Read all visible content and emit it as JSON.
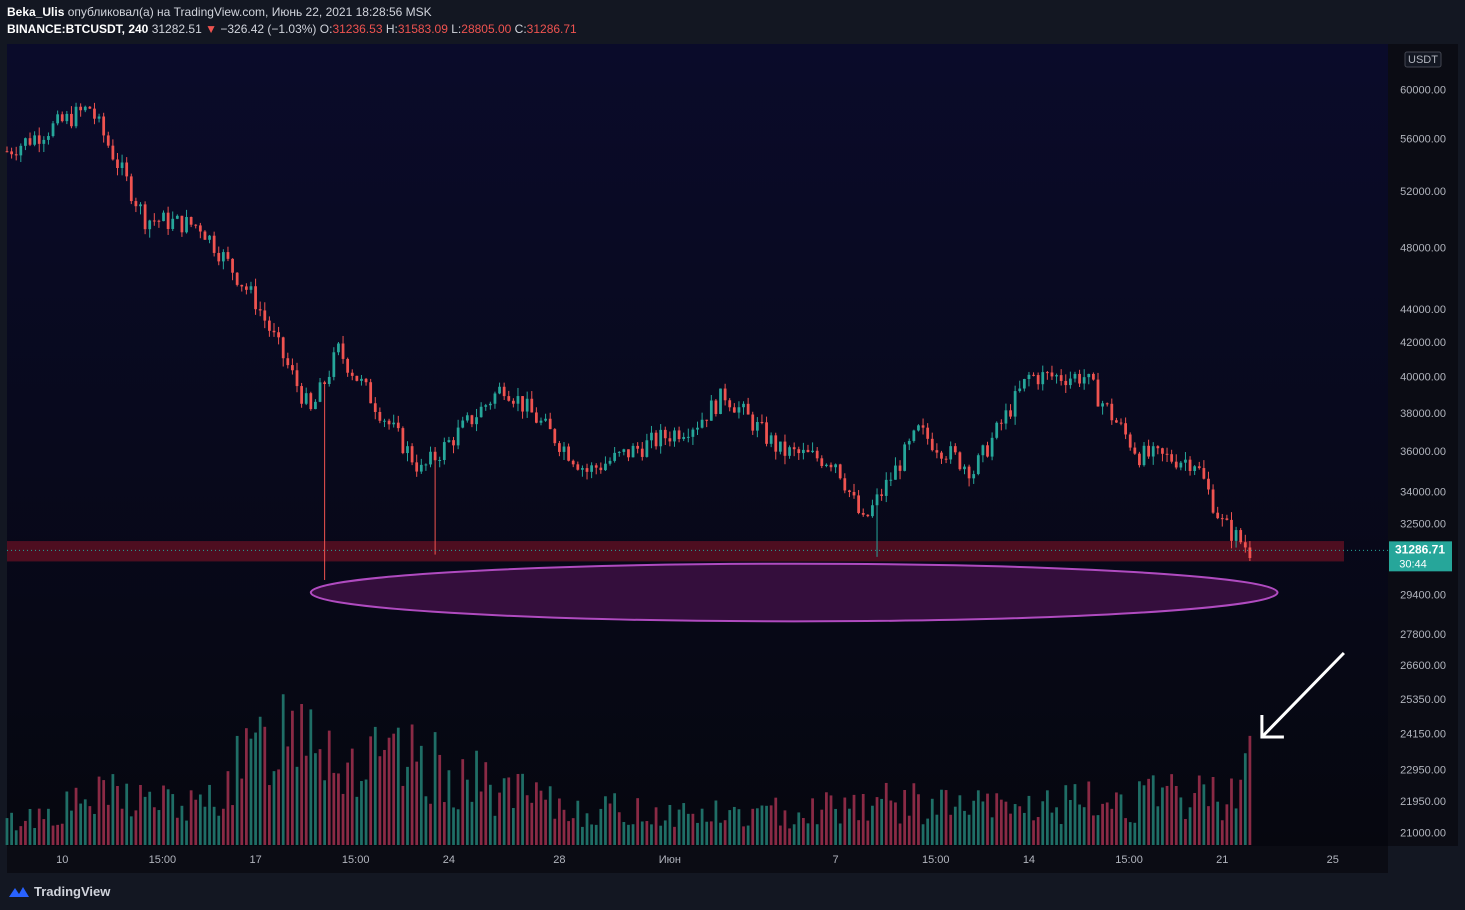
{
  "header": {
    "author": "Beka_Ulis",
    "published_text": "опубликовал(а) на TradingView.com, Июнь 22, 2021 18:28:56 MSK",
    "symbol": "BINANCE:BTCUSDT, 240",
    "last": "31282.51",
    "change_arrow": "▼",
    "change": "−326.42 (−1.03%)",
    "o_label": "O:",
    "o_value": "31236.53",
    "h_label": "H:",
    "h_value": "31583.09",
    "l_label": "L:",
    "l_value": "28805.00",
    "c_label": "C:",
    "c_value": "31286.71"
  },
  "footer": {
    "brand": "TradingView",
    "logo_icon": "tradingview-logo-icon"
  },
  "colors": {
    "up": "#26a69a",
    "down": "#ef5350",
    "vol_up": "#1f6e66",
    "vol_down": "#8a2a45",
    "zone": "#5a0f22",
    "ellipse_fill": "#3a1040",
    "ellipse_stroke": "#b04bc0",
    "price_badge": "#26a69a"
  },
  "chart_data": {
    "type": "candlestick",
    "symbol": "BINANCE:BTCUSDT",
    "interval": "240",
    "currency": "USDT",
    "y_scale": "log",
    "ylim": [
      20600,
      64000
    ],
    "y_ticks": [
      "60000.00",
      "56000.00",
      "52000.00",
      "48000.00",
      "44000.00",
      "42000.00",
      "40000.00",
      "38000.00",
      "36000.00",
      "34000.00",
      "32500.00",
      "29400.00",
      "27800.00",
      "26600.00",
      "25350.00",
      "24150.00",
      "22950.00",
      "21950.00",
      "21000.00"
    ],
    "y_tick_values": [
      60000,
      56000,
      52000,
      48000,
      44000,
      42000,
      40000,
      38000,
      36000,
      34000,
      32500,
      29400,
      27800,
      26600,
      25350,
      24150,
      22950,
      21950,
      21000
    ],
    "x_ticks": [
      "10",
      "15:00",
      "17",
      "15:00",
      "24",
      "28",
      "Июн",
      "7",
      "15:00",
      "14",
      "15:00",
      "21",
      "25"
    ],
    "x_tick_values": [
      "2021-05-10",
      "2021-05-13 15:00",
      "2021-05-17",
      "2021-05-20 15:00",
      "2021-05-24",
      "2021-05-28",
      "2021-06-01",
      "2021-06-07",
      "2021-06-10 15:00",
      "2021-06-14",
      "2021-06-17 15:00",
      "2021-06-21",
      "2021-06-25"
    ],
    "x_range": [
      "2021-05-08",
      "2021-06-27"
    ],
    "current_price": "31286.71",
    "countdown": "30:44",
    "support_zone": [
      30800,
      31700
    ],
    "highlighted_region": {
      "price_from": 28300,
      "price_to": 30700,
      "date_from": "2021-05-19",
      "date_to": "2021-06-23"
    },
    "arrow_annotation": {
      "points_to": "last volume bar",
      "date": "2021-06-22"
    },
    "swing_points": [
      {
        "date": "2021-05-08",
        "price": 55000
      },
      {
        "date": "2021-05-11",
        "price": 58500
      },
      {
        "date": "2021-05-13",
        "price": 50000
      },
      {
        "date": "2021-05-15",
        "price": 49500
      },
      {
        "date": "2021-05-17",
        "price": 44500
      },
      {
        "date": "2021-05-19",
        "price": 38000
      },
      {
        "date": "2021-05-20",
        "price": 41500
      },
      {
        "date": "2021-05-23",
        "price": 35000
      },
      {
        "date": "2021-05-26",
        "price": 39500
      },
      {
        "date": "2021-05-29",
        "price": 35000
      },
      {
        "date": "2021-06-02",
        "price": 37500
      },
      {
        "date": "2021-06-03",
        "price": 39000
      },
      {
        "date": "2021-06-05",
        "price": 36000
      },
      {
        "date": "2021-06-07",
        "price": 35500
      },
      {
        "date": "2021-06-08",
        "price": 32500
      },
      {
        "date": "2021-06-10",
        "price": 37000
      },
      {
        "date": "2021-06-12",
        "price": 35000
      },
      {
        "date": "2021-06-14",
        "price": 40000
      },
      {
        "date": "2021-06-16",
        "price": 40000
      },
      {
        "date": "2021-06-18",
        "price": 35800
      },
      {
        "date": "2021-06-20",
        "price": 35500
      },
      {
        "date": "2021-06-21",
        "price": 32500
      },
      {
        "date": "2021-06-22",
        "price": 31286.71
      }
    ],
    "wick_lows": [
      {
        "date": "2021-05-19",
        "price": 30000
      },
      {
        "date": "2021-05-23",
        "price": 31100
      },
      {
        "date": "2021-06-08",
        "price": 31000
      },
      {
        "date": "2021-06-22",
        "price": 28805
      }
    ],
    "volume_profile": [
      {
        "date": "2021-05-08",
        "level": 0.15
      },
      {
        "date": "2021-05-12",
        "level": 0.35
      },
      {
        "date": "2021-05-15",
        "level": 0.25
      },
      {
        "date": "2021-05-19",
        "level": 1.0
      },
      {
        "date": "2021-05-20",
        "level": 0.55
      },
      {
        "date": "2021-05-23",
        "level": 0.55
      },
      {
        "date": "2021-05-28",
        "level": 0.25
      },
      {
        "date": "2021-06-04",
        "level": 0.2
      },
      {
        "date": "2021-06-08",
        "level": 0.3
      },
      {
        "date": "2021-06-13",
        "level": 0.25
      },
      {
        "date": "2021-06-21",
        "level": 0.35
      },
      {
        "date": "2021-06-22",
        "level": 0.6
      }
    ]
  }
}
